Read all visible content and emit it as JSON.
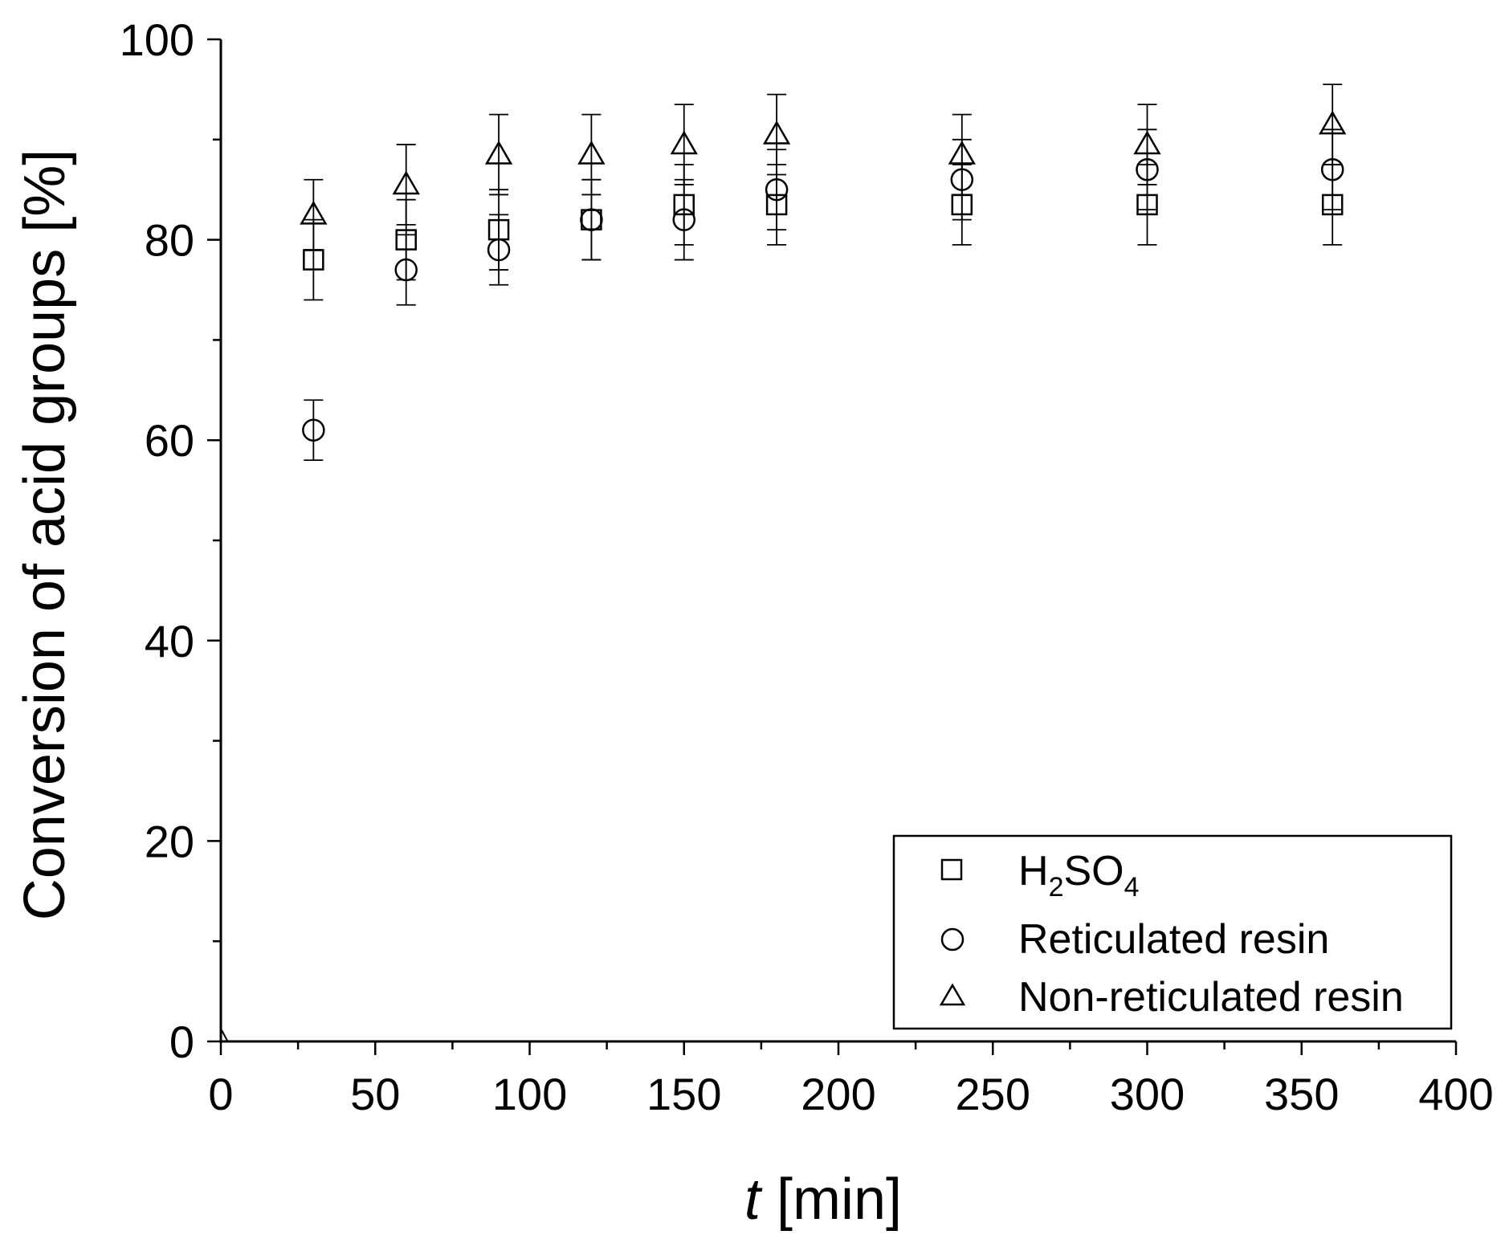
{
  "chart_data": {
    "type": "scatter",
    "title": "",
    "xlabel_italic": "t",
    "xlabel_rest": " [min]",
    "ylabel": "Conversion of acid groups [%]",
    "xlim": [
      0,
      400
    ],
    "ylim": [
      0,
      100
    ],
    "x_major_ticks": [
      0,
      50,
      100,
      150,
      200,
      250,
      300,
      350,
      400
    ],
    "x_tick_labels": [
      "0",
      "50",
      "100",
      "150",
      "200",
      "250",
      "300",
      "350",
      "400"
    ],
    "y_major_ticks": [
      0,
      20,
      40,
      60,
      80,
      100
    ],
    "y_tick_labels": [
      "0",
      "20",
      "40",
      "60",
      "80",
      "100"
    ],
    "grid": false,
    "legend_position": "bottom-right",
    "series": [
      {
        "name": "H2SO4",
        "marker": "square",
        "x": [
          30,
          60,
          90,
          120,
          150,
          180,
          240,
          300,
          360
        ],
        "y": [
          78,
          80,
          81,
          82,
          83.5,
          83.5,
          83.5,
          83.5,
          83.5
        ],
        "err": [
          4,
          4,
          4,
          4,
          4,
          4,
          4,
          4,
          4
        ]
      },
      {
        "name": "Reticulated resin",
        "marker": "circle",
        "x": [
          30,
          60,
          90,
          120,
          150,
          180,
          240,
          300,
          360
        ],
        "y": [
          61,
          77,
          79,
          82,
          82,
          85,
          86,
          87,
          87
        ],
        "err": [
          3,
          3.5,
          3.5,
          4,
          4,
          4,
          4,
          4,
          4
        ]
      },
      {
        "name": "Non-reticulated resin",
        "marker": "triangle",
        "x": [
          30,
          60,
          90,
          120,
          150,
          180,
          240,
          300,
          360
        ],
        "y": [
          82.5,
          85.5,
          88.5,
          88.5,
          89.5,
          90.5,
          88.5,
          89.5,
          91.5
        ],
        "err": [
          3.5,
          4,
          4,
          4,
          4,
          4,
          4,
          4,
          4
        ]
      }
    ]
  },
  "legend": {
    "h2so4_main": "H",
    "h2so4_sub1": "2",
    "h2so4_mid": "SO",
    "h2so4_sub2": "4",
    "reticulated": "Reticulated resin",
    "non_reticulated": "Non-reticulated resin"
  }
}
